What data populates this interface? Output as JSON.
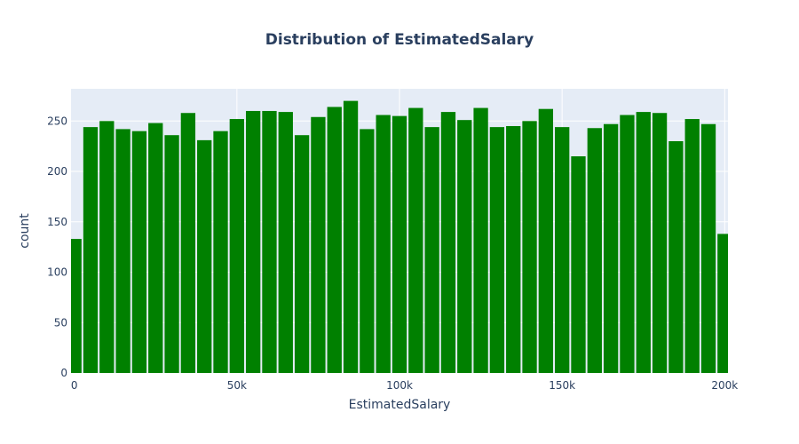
{
  "chart_data": {
    "type": "bar",
    "title": "Distribution of EstimatedSalary",
    "xlabel": "EstimatedSalary",
    "ylabel": "count",
    "bar_color": "#008000",
    "plot_background": "#e5ecf6",
    "grid": true,
    "bin_width": 5000,
    "x_bin_starts": [
      0,
      5000,
      10000,
      15000,
      20000,
      25000,
      30000,
      35000,
      40000,
      45000,
      50000,
      55000,
      60000,
      65000,
      70000,
      75000,
      80000,
      85000,
      90000,
      95000,
      100000,
      105000,
      110000,
      115000,
      120000,
      125000,
      130000,
      135000,
      140000,
      145000,
      150000,
      155000,
      160000,
      165000,
      170000,
      175000,
      180000,
      185000,
      190000,
      195000,
      200000
    ],
    "values": [
      133,
      244,
      250,
      242,
      240,
      248,
      236,
      258,
      231,
      240,
      252,
      260,
      260,
      259,
      236,
      254,
      264,
      270,
      242,
      256,
      255,
      263,
      244,
      259,
      251,
      263,
      244,
      245,
      250,
      262,
      244,
      215,
      243,
      247,
      256,
      259,
      258,
      230,
      252,
      247,
      138
    ],
    "xlim": [
      -1000,
      201000
    ],
    "ylim": [
      0,
      282
    ],
    "x_ticks": [
      0,
      50000,
      100000,
      150000,
      200000
    ],
    "x_tick_labels": [
      "0",
      "50k",
      "100k",
      "150k",
      "200k"
    ],
    "y_ticks": [
      0,
      50,
      100,
      150,
      200,
      250
    ],
    "y_tick_labels": [
      "0",
      "50",
      "100",
      "150",
      "200",
      "250"
    ]
  }
}
